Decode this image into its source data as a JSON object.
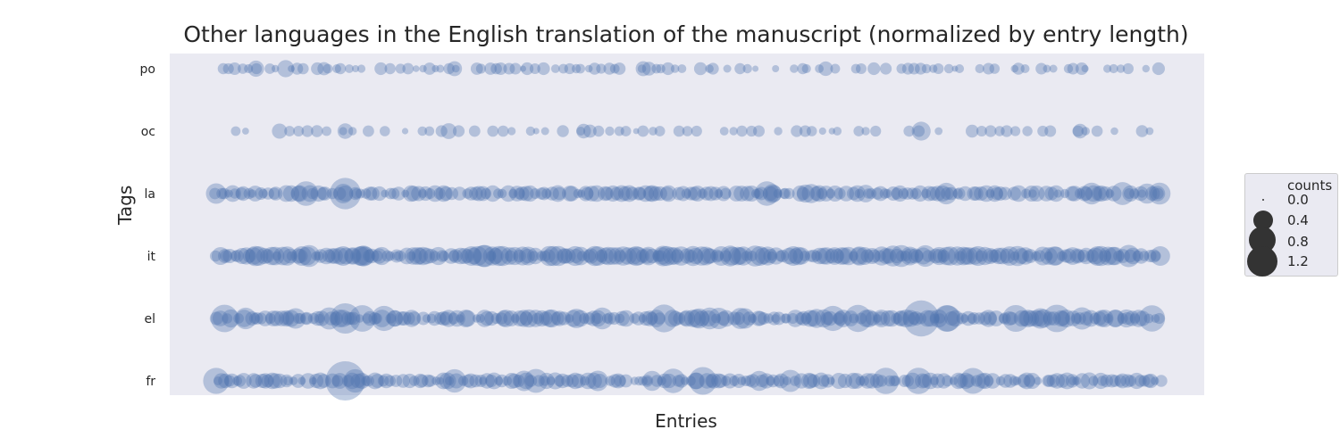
{
  "chart_data": {
    "type": "scatter",
    "title": "Other languages in the English translation of the manuscript (normalized by entry length)",
    "xlabel": "Entries",
    "ylabel": "Tags",
    "categories": [
      "po",
      "oc",
      "la",
      "it",
      "el",
      "fr"
    ],
    "x_range": [
      0,
      1
    ],
    "grid": false,
    "marker_color": "#4c72b0",
    "marker_opacity": 0.35,
    "background_color": "#eaeaf2",
    "legend": {
      "title": "counts",
      "placement": "right",
      "entries": [
        {
          "label": "0.0",
          "value": 0.0
        },
        {
          "label": "0.4",
          "value": 0.4
        },
        {
          "label": "0.8",
          "value": 0.8
        },
        {
          "label": "1.2",
          "value": 1.2
        }
      ]
    },
    "series": [
      {
        "tag": "po",
        "x_extent": [
          0.05,
          1.0
        ],
        "density": 0.55,
        "typical_count": 0.08,
        "max_count": 0.2,
        "highlights": [
          {
            "x": 0.09,
            "count": 0.18
          },
          {
            "x": 0.12,
            "count": 0.2
          },
          {
            "x": 0.29,
            "count": 0.15
          },
          {
            "x": 0.48,
            "count": 0.15
          }
        ]
      },
      {
        "tag": "oc",
        "x_extent": [
          0.07,
          0.99
        ],
        "density": 0.4,
        "typical_count": 0.07,
        "max_count": 0.25,
        "highlights": [
          {
            "x": 0.18,
            "count": 0.16
          },
          {
            "x": 0.42,
            "count": 0.14
          },
          {
            "x": 0.76,
            "count": 0.25
          },
          {
            "x": 0.92,
            "count": 0.14
          }
        ]
      },
      {
        "tag": "la",
        "x_extent": [
          0.05,
          1.0
        ],
        "density": 0.9,
        "typical_count": 0.15,
        "max_count": 0.75,
        "highlights": [
          {
            "x": 0.05,
            "count": 0.3
          },
          {
            "x": 0.18,
            "count": 0.75
          },
          {
            "x": 0.61,
            "count": 0.25
          },
          {
            "x": 1.0,
            "count": 0.35
          }
        ]
      },
      {
        "tag": "it",
        "x_extent": [
          0.05,
          1.0
        ],
        "density": 1.0,
        "typical_count": 0.22,
        "max_count": 0.35,
        "highlights": [
          {
            "x": 0.2,
            "count": 0.25
          },
          {
            "x": 0.5,
            "count": 0.3
          },
          {
            "x": 0.74,
            "count": 0.35
          }
        ]
      },
      {
        "tag": "el",
        "x_extent": [
          0.05,
          1.0
        ],
        "density": 0.95,
        "typical_count": 0.18,
        "max_count": 1.0,
        "highlights": [
          {
            "x": 0.18,
            "count": 0.7
          },
          {
            "x": 0.13,
            "count": 0.3
          },
          {
            "x": 0.76,
            "count": 1.0
          },
          {
            "x": 0.88,
            "count": 0.3
          }
        ]
      },
      {
        "tag": "fr",
        "x_extent": [
          0.05,
          1.0
        ],
        "density": 0.9,
        "typical_count": 0.15,
        "max_count": 1.2,
        "highlights": [
          {
            "x": 0.05,
            "count": 0.5
          },
          {
            "x": 0.18,
            "count": 1.2
          },
          {
            "x": 0.19,
            "count": 0.4
          },
          {
            "x": 0.29,
            "count": 0.4
          },
          {
            "x": 0.36,
            "count": 0.3
          }
        ]
      }
    ]
  }
}
